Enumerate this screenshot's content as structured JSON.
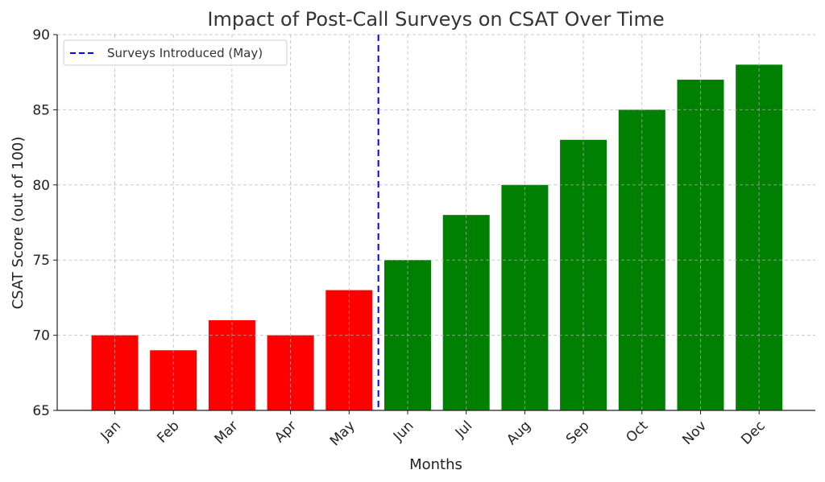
{
  "chart_data": {
    "type": "bar",
    "title": "Impact of Post-Call Surveys on CSAT Over Time",
    "xlabel": "Months",
    "ylabel": "CSAT Score (out of 100)",
    "ylim": [
      65,
      90
    ],
    "yticks": [
      65,
      70,
      75,
      80,
      85,
      90
    ],
    "grid": true,
    "categories": [
      "Jan",
      "Feb",
      "Mar",
      "Apr",
      "May",
      "Jun",
      "Jul",
      "Aug",
      "Sep",
      "Oct",
      "Nov",
      "Dec"
    ],
    "values": [
      70,
      69,
      71,
      70,
      73,
      75,
      78,
      80,
      83,
      85,
      87,
      88
    ],
    "colors": [
      "#ff0000",
      "#ff0000",
      "#ff0000",
      "#ff0000",
      "#ff0000",
      "#008000",
      "#008000",
      "#008000",
      "#008000",
      "#008000",
      "#008000",
      "#008000"
    ],
    "vline": {
      "x_after_category": "May",
      "x_index": 4.5,
      "color": "#0000ff",
      "style": "dashed",
      "label": "Surveys Introduced (May)"
    },
    "legend": {
      "placement": "top-left",
      "entries": [
        "Surveys Introduced (May)"
      ]
    }
  }
}
